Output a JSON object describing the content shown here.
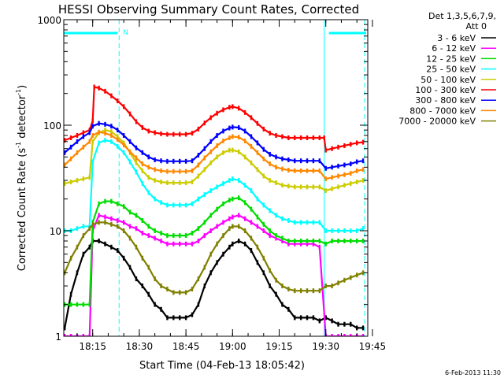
{
  "chart_data": {
    "type": "line",
    "title": "HESSI Observing Summary Count Rates, Corrected",
    "xlabel": "Start Time (04-Feb-13 18:05:42)",
    "ylabel_main": "Corrected Count Rate (s",
    "ylabel_sup1": "-1",
    "ylabel_mid": " detector",
    "ylabel_sup2": "-1",
    "ylabel_end": ")",
    "yscale": "log",
    "ylim": [
      1,
      1000
    ],
    "xlim": [
      3.7,
      101.5
    ],
    "x_unit": "minutes after 18:02",
    "xticks": [
      {
        "x": 13,
        "label": "18:15"
      },
      {
        "x": 28,
        "label": "18:30"
      },
      {
        "x": 43,
        "label": "18:45"
      },
      {
        "x": 58,
        "label": "19:00"
      },
      {
        "x": 73,
        "label": "19:15"
      },
      {
        "x": 88,
        "label": "19:30"
      },
      {
        "x": 103,
        "label": "19:45"
      }
    ],
    "yticks": [
      {
        "y": 1,
        "label": "1"
      },
      {
        "y": 10,
        "label": "10"
      },
      {
        "y": 100,
        "label": "100"
      },
      {
        "y": 1000,
        "label": "1000"
      }
    ],
    "legend_title": [
      "Det 1,3,5,6,7,9,",
      "Att 0"
    ],
    "legend_placement": "right",
    "footer_date": "6-Feb-2013 11:30",
    "flag_label": "N",
    "flag_bars": [
      {
        "x0": 3.7,
        "x1": 21.0
      },
      {
        "x0": 89.0,
        "x1": 101.0
      }
    ],
    "dashed_lines_x": [
      21.5,
      100.5
    ],
    "solid_lines_x": [
      3.7,
      87.5
    ],
    "series": [
      {
        "name": "3 - 6 keV",
        "color": "#000000",
        "x": [
          4,
          6,
          8,
          10,
          12,
          13,
          15,
          17,
          19,
          21,
          23,
          25,
          27,
          29,
          31,
          33,
          35,
          37,
          39,
          41,
          43,
          45,
          47,
          49,
          51,
          53,
          55,
          57,
          58,
          60,
          62,
          64,
          66,
          68,
          70,
          72,
          74,
          76,
          78,
          80,
          82,
          84,
          86,
          88,
          90,
          92,
          94,
          96,
          98,
          100
        ],
        "values": [
          1.2,
          2.5,
          4,
          6,
          7,
          8,
          8,
          7.5,
          7,
          6.5,
          5.5,
          4.5,
          3.5,
          3,
          2.5,
          2,
          1.8,
          1.5,
          1.5,
          1.5,
          1.5,
          1.6,
          2,
          3,
          4,
          5,
          6,
          7,
          7.5,
          8,
          7.5,
          6.5,
          5,
          4,
          3,
          2.5,
          2,
          1.8,
          1.5,
          1.5,
          1.5,
          1.5,
          1.4,
          1.5,
          1.4,
          1.3,
          1.3,
          1.3,
          1.2,
          1.2
        ]
      },
      {
        "name": "6 - 12 keV",
        "color": "#ff00ff",
        "x": [
          4,
          6,
          8,
          10,
          12,
          13,
          15,
          17,
          19,
          21,
          23,
          25,
          27,
          29,
          31,
          33,
          35,
          37,
          39,
          41,
          43,
          45,
          47,
          49,
          51,
          53,
          55,
          57,
          58,
          60,
          62,
          64,
          66,
          68,
          70,
          72,
          74,
          76,
          78,
          80,
          82,
          84,
          86,
          88,
          90,
          92,
          94,
          96,
          98,
          100
        ],
        "values": [
          1,
          1,
          1,
          1,
          1,
          10,
          14,
          13.5,
          13,
          12.5,
          12,
          11,
          10.5,
          9.5,
          9,
          8.5,
          8,
          7.5,
          7.5,
          7.5,
          7.5,
          7.5,
          8,
          9,
          10,
          11,
          12,
          13,
          13.5,
          14,
          13,
          12,
          11,
          10,
          9,
          8.5,
          8,
          7.5,
          7.5,
          7.5,
          7.5,
          7.5,
          7,
          1,
          1,
          1,
          1,
          1,
          1,
          1
        ]
      },
      {
        "name": "12 - 25 keV",
        "color": "#00dd00",
        "x": [
          4,
          6,
          8,
          10,
          12,
          13,
          15,
          17,
          19,
          21,
          23,
          25,
          27,
          29,
          31,
          33,
          35,
          37,
          39,
          41,
          43,
          45,
          47,
          49,
          51,
          53,
          55,
          57,
          58,
          60,
          62,
          64,
          66,
          68,
          70,
          72,
          74,
          76,
          78,
          80,
          82,
          84,
          86,
          88,
          90,
          92,
          94,
          96,
          98,
          100
        ],
        "values": [
          2,
          2,
          2,
          2,
          2,
          12,
          18,
          19,
          19,
          18,
          17,
          15,
          14,
          12.5,
          11,
          10,
          9.5,
          9,
          9,
          9,
          9,
          9.5,
          10.5,
          12,
          14,
          16,
          18,
          19.5,
          20,
          20.5,
          18.5,
          16,
          13.5,
          11.5,
          10,
          9,
          8.5,
          8,
          8,
          8,
          8,
          8,
          8,
          7.5,
          8,
          8,
          8,
          8,
          8,
          8
        ]
      },
      {
        "name": "25 - 50 keV",
        "color": "#00ffff",
        "x": [
          4,
          6,
          8,
          10,
          12,
          13,
          15,
          17,
          19,
          21,
          23,
          25,
          27,
          29,
          31,
          33,
          35,
          37,
          39,
          41,
          43,
          45,
          47,
          49,
          51,
          53,
          55,
          57,
          58,
          60,
          62,
          64,
          66,
          68,
          70,
          72,
          74,
          76,
          78,
          80,
          82,
          84,
          86,
          88,
          90,
          92,
          94,
          96,
          98,
          100
        ],
        "values": [
          10,
          10,
          10.5,
          11,
          11,
          45,
          68,
          72,
          70,
          63,
          55,
          45,
          36,
          28,
          23,
          20,
          18.5,
          17.5,
          17.5,
          17.5,
          17.5,
          18,
          20,
          22,
          24,
          26,
          28,
          30,
          31,
          30,
          27,
          24,
          20,
          17.5,
          15.5,
          14,
          13,
          12.5,
          12,
          12,
          12,
          12,
          12,
          10,
          10,
          10,
          10,
          10,
          10,
          10.5
        ]
      },
      {
        "name": "50 - 100 keV",
        "color": "#cccc00",
        "x": [
          4,
          6,
          8,
          10,
          12,
          13,
          15,
          17,
          19,
          21,
          23,
          25,
          27,
          29,
          31,
          33,
          35,
          37,
          39,
          41,
          43,
          45,
          47,
          49,
          51,
          53,
          55,
          57,
          58,
          60,
          62,
          64,
          66,
          68,
          70,
          72,
          74,
          76,
          78,
          80,
          82,
          84,
          86,
          88,
          90,
          92,
          94,
          96,
          98,
          100
        ],
        "values": [
          28,
          29,
          30,
          31,
          32,
          70,
          85,
          90,
          87,
          78,
          68,
          55,
          44,
          37,
          32,
          30,
          29,
          28.5,
          28.5,
          28.5,
          28.5,
          29,
          33,
          38,
          44,
          50,
          55,
          58,
          58,
          56,
          50,
          44,
          38,
          33,
          30,
          28.5,
          27,
          26.5,
          26,
          26,
          26,
          26,
          26,
          24,
          25,
          26,
          27,
          28,
          29,
          30
        ]
      },
      {
        "name": "100 - 300 keV",
        "color": "#ff0000",
        "x": [
          4,
          6,
          8,
          10,
          12,
          13,
          13.5,
          15,
          17,
          19,
          21,
          23,
          25,
          27,
          29,
          31,
          33,
          35,
          37,
          39,
          41,
          43,
          45,
          47,
          49,
          51,
          53,
          55,
          57,
          58,
          60,
          62,
          64,
          66,
          68,
          70,
          72,
          74,
          76,
          78,
          80,
          82,
          84,
          86,
          87.5,
          88,
          90,
          92,
          94,
          96,
          98,
          100
        ],
        "values": [
          72,
          76,
          80,
          85,
          90,
          110,
          230,
          225,
          210,
          190,
          170,
          150,
          128,
          108,
          95,
          88,
          85,
          83,
          82,
          82,
          82,
          82,
          84,
          92,
          105,
          118,
          130,
          140,
          148,
          150,
          145,
          132,
          118,
          104,
          92,
          84,
          80,
          78,
          76,
          76,
          76,
          76,
          76,
          76,
          76,
          58,
          60,
          62,
          64,
          66,
          68,
          69
        ]
      },
      {
        "name": "300 - 800 keV",
        "color": "#0000ff",
        "x": [
          4,
          6,
          8,
          10,
          12,
          13,
          15,
          17,
          19,
          21,
          23,
          25,
          27,
          29,
          31,
          33,
          35,
          37,
          39,
          41,
          43,
          45,
          47,
          49,
          51,
          53,
          55,
          57,
          58,
          60,
          62,
          64,
          66,
          68,
          70,
          72,
          74,
          76,
          78,
          80,
          82,
          84,
          86,
          88,
          90,
          92,
          94,
          96,
          98,
          100
        ],
        "values": [
          55,
          62,
          70,
          78,
          85,
          98,
          104,
          102,
          98,
          90,
          80,
          70,
          61,
          55,
          50,
          47,
          46,
          45.5,
          45.5,
          45.5,
          45.5,
          46,
          52,
          60,
          70,
          80,
          88,
          94,
          96,
          95,
          88,
          78,
          68,
          59,
          53,
          50,
          48,
          47,
          46,
          46,
          46,
          46,
          46,
          39,
          40,
          41,
          42,
          43,
          45,
          46
        ]
      },
      {
        "name": "800 - 7000 keV",
        "color": "#ff8800",
        "x": [
          4,
          6,
          8,
          10,
          12,
          13,
          15,
          17,
          19,
          21,
          23,
          25,
          27,
          29,
          31,
          33,
          35,
          37,
          39,
          41,
          43,
          45,
          47,
          49,
          51,
          53,
          55,
          57,
          58,
          60,
          62,
          64,
          66,
          68,
          70,
          72,
          74,
          76,
          78,
          80,
          82,
          84,
          86,
          88,
          90,
          92,
          94,
          96,
          98,
          100
        ],
        "values": [
          42,
          48,
          55,
          62,
          70,
          80,
          86,
          84,
          80,
          73,
          65,
          56,
          49,
          43,
          40,
          38,
          37,
          36.5,
          36.5,
          36.5,
          36.5,
          37,
          42,
          49,
          56,
          64,
          71,
          76,
          78,
          77,
          71,
          63,
          55,
          48,
          43,
          40,
          38.5,
          37.5,
          37,
          37,
          37,
          37,
          37,
          31,
          32,
          33,
          34,
          35,
          37,
          38
        ]
      },
      {
        "name": "7000 - 20000 keV",
        "color": "#808000",
        "x": [
          4,
          6,
          8,
          10,
          12,
          13,
          15,
          17,
          19,
          21,
          23,
          25,
          27,
          29,
          31,
          33,
          35,
          37,
          39,
          41,
          43,
          45,
          47,
          49,
          51,
          53,
          55,
          57,
          58,
          60,
          62,
          64,
          66,
          68,
          70,
          72,
          74,
          76,
          78,
          80,
          82,
          84,
          86,
          88,
          90,
          92,
          94,
          96,
          98,
          100
        ],
        "values": [
          4,
          5.5,
          7,
          9,
          10.5,
          11.5,
          12,
          12,
          11.5,
          11,
          10,
          8.5,
          7,
          5.5,
          4.5,
          3.5,
          3,
          2.8,
          2.6,
          2.6,
          2.6,
          2.8,
          3.5,
          4.5,
          6,
          7.5,
          9,
          10.5,
          11,
          11,
          10,
          8.5,
          7,
          5.5,
          4.2,
          3.4,
          3,
          2.8,
          2.7,
          2.7,
          2.7,
          2.7,
          2.7,
          3,
          3,
          3.2,
          3.4,
          3.6,
          3.8,
          4
        ]
      }
    ]
  }
}
